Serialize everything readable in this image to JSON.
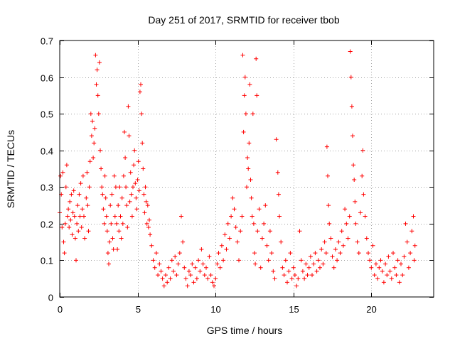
{
  "chart_data": {
    "type": "scatter",
    "title": "Day 251 of 2017, SRMTID for receiver tbob",
    "xlabel": "GPS time / hours",
    "ylabel": "SRMTID / TECUs",
    "xlim": [
      0,
      24
    ],
    "ylim": [
      0,
      0.7
    ],
    "xticks": [
      0,
      5,
      10,
      15,
      20
    ],
    "xtick_labels": [
      "0",
      "5",
      "10",
      "15",
      "20"
    ],
    "yticks": [
      0,
      0.1,
      0.2,
      0.3,
      0.4,
      0.5,
      0.6,
      0.7
    ],
    "ytick_labels": [
      "0",
      "0.1",
      "0.2",
      "0.3",
      "0.4",
      "0.5",
      "0.6",
      "0.7"
    ],
    "grid": true,
    "marker": "plus",
    "color": "#ff0000",
    "series": [
      {
        "name": "SRMTID",
        "points": [
          [
            0.0,
            0.23
          ],
          [
            0.05,
            0.33
          ],
          [
            0.1,
            0.28
          ],
          [
            0.15,
            0.19
          ],
          [
            0.2,
            0.34
          ],
          [
            0.25,
            0.15
          ],
          [
            0.3,
            0.12
          ],
          [
            0.35,
            0.2
          ],
          [
            0.4,
            0.3
          ],
          [
            0.45,
            0.36
          ],
          [
            0.5,
            0.22
          ],
          [
            0.55,
            0.24
          ],
          [
            0.6,
            0.19
          ],
          [
            0.65,
            0.26
          ],
          [
            0.7,
            0.21
          ],
          [
            0.75,
            0.28
          ],
          [
            0.8,
            0.17
          ],
          [
            0.85,
            0.23
          ],
          [
            0.9,
            0.29
          ],
          [
            0.95,
            0.22
          ],
          [
            1.0,
            0.16
          ],
          [
            1.05,
            0.1
          ],
          [
            1.1,
            0.2
          ],
          [
            1.15,
            0.25
          ],
          [
            1.2,
            0.18
          ],
          [
            1.25,
            0.28
          ],
          [
            1.3,
            0.22
          ],
          [
            1.35,
            0.31
          ],
          [
            1.4,
            0.19
          ],
          [
            1.45,
            0.24
          ],
          [
            1.5,
            0.33
          ],
          [
            1.55,
            0.22
          ],
          [
            1.6,
            0.16
          ],
          [
            1.7,
            0.27
          ],
          [
            1.75,
            0.34
          ],
          [
            1.8,
            0.25
          ],
          [
            1.85,
            0.18
          ],
          [
            1.9,
            0.3
          ],
          [
            1.95,
            0.37
          ],
          [
            2.0,
            0.5
          ],
          [
            2.05,
            0.44
          ],
          [
            2.1,
            0.48
          ],
          [
            2.15,
            0.38
          ],
          [
            2.2,
            0.42
          ],
          [
            2.25,
            0.46
          ],
          [
            2.3,
            0.66
          ],
          [
            2.35,
            0.58
          ],
          [
            2.4,
            0.62
          ],
          [
            2.45,
            0.55
          ],
          [
            2.5,
            0.5
          ],
          [
            2.55,
            0.64
          ],
          [
            2.6,
            0.4
          ],
          [
            2.65,
            0.35
          ],
          [
            2.7,
            0.3
          ],
          [
            2.75,
            0.28
          ],
          [
            2.8,
            0.24
          ],
          [
            2.85,
            0.2
          ],
          [
            2.9,
            0.33
          ],
          [
            2.95,
            0.27
          ],
          [
            3.0,
            0.22
          ],
          [
            3.05,
            0.18
          ],
          [
            3.1,
            0.12
          ],
          [
            3.15,
            0.09
          ],
          [
            3.2,
            0.15
          ],
          [
            3.25,
            0.25
          ],
          [
            3.3,
            0.2
          ],
          [
            3.35,
            0.28
          ],
          [
            3.4,
            0.16
          ],
          [
            3.45,
            0.13
          ],
          [
            3.5,
            0.33
          ],
          [
            3.55,
            0.22
          ],
          [
            3.6,
            0.3
          ],
          [
            3.65,
            0.2
          ],
          [
            3.7,
            0.13
          ],
          [
            3.75,
            0.25
          ],
          [
            3.8,
            0.18
          ],
          [
            3.85,
            0.3
          ],
          [
            3.9,
            0.22
          ],
          [
            3.95,
            0.16
          ],
          [
            4.0,
            0.27
          ],
          [
            4.05,
            0.2
          ],
          [
            4.1,
            0.33
          ],
          [
            4.15,
            0.45
          ],
          [
            4.2,
            0.38
          ],
          [
            4.25,
            0.3
          ],
          [
            4.3,
            0.25
          ],
          [
            4.35,
            0.19
          ],
          [
            4.4,
            0.52
          ],
          [
            4.45,
            0.44
          ],
          [
            4.5,
            0.26
          ],
          [
            4.55,
            0.34
          ],
          [
            4.6,
            0.28
          ],
          [
            4.65,
            0.22
          ],
          [
            4.7,
            0.3
          ],
          [
            4.75,
            0.36
          ],
          [
            4.8,
            0.4
          ],
          [
            4.85,
            0.31
          ],
          [
            4.9,
            0.27
          ],
          [
            4.95,
            0.24
          ],
          [
            5.0,
            0.32
          ],
          [
            5.05,
            0.37
          ],
          [
            5.1,
            0.29
          ],
          [
            5.15,
            0.56
          ],
          [
            5.2,
            0.58
          ],
          [
            5.25,
            0.5
          ],
          [
            5.3,
            0.42
          ],
          [
            5.35,
            0.35
          ],
          [
            5.4,
            0.28
          ],
          [
            5.45,
            0.23
          ],
          [
            5.5,
            0.3
          ],
          [
            5.55,
            0.26
          ],
          [
            5.6,
            0.2
          ],
          [
            5.65,
            0.25
          ],
          [
            5.7,
            0.19
          ],
          [
            5.75,
            0.21
          ],
          [
            5.8,
            0.17
          ],
          [
            5.9,
            0.14
          ],
          [
            6.0,
            0.1
          ],
          [
            6.1,
            0.08
          ],
          [
            6.2,
            0.12
          ],
          [
            6.3,
            0.06
          ],
          [
            6.4,
            0.09
          ],
          [
            6.5,
            0.07
          ],
          [
            6.6,
            0.05
          ],
          [
            6.7,
            0.03
          ],
          [
            6.8,
            0.06
          ],
          [
            6.9,
            0.04
          ],
          [
            7.0,
            0.08
          ],
          [
            7.1,
            0.05
          ],
          [
            7.2,
            0.1
          ],
          [
            7.3,
            0.07
          ],
          [
            7.4,
            0.11
          ],
          [
            7.5,
            0.06
          ],
          [
            7.6,
            0.09
          ],
          [
            7.7,
            0.12
          ],
          [
            7.8,
            0.22
          ],
          [
            7.9,
            0.15
          ],
          [
            8.0,
            0.08
          ],
          [
            8.1,
            0.05
          ],
          [
            8.2,
            0.03
          ],
          [
            8.3,
            0.07
          ],
          [
            8.4,
            0.06
          ],
          [
            8.5,
            0.09
          ],
          [
            8.6,
            0.04
          ],
          [
            8.7,
            0.08
          ],
          [
            8.8,
            0.05
          ],
          [
            8.9,
            0.1
          ],
          [
            9.0,
            0.07
          ],
          [
            9.1,
            0.13
          ],
          [
            9.2,
            0.09
          ],
          [
            9.3,
            0.06
          ],
          [
            9.4,
            0.08
          ],
          [
            9.5,
            0.05
          ],
          [
            9.6,
            0.11
          ],
          [
            9.7,
            0.06
          ],
          [
            9.8,
            0.04
          ],
          [
            9.9,
            0.03
          ],
          [
            10.0,
            0.05
          ],
          [
            10.1,
            0.09
          ],
          [
            10.2,
            0.12
          ],
          [
            10.3,
            0.08
          ],
          [
            10.4,
            0.14
          ],
          [
            10.5,
            0.1
          ],
          [
            10.6,
            0.17
          ],
          [
            10.7,
            0.13
          ],
          [
            10.8,
            0.2
          ],
          [
            10.9,
            0.16
          ],
          [
            11.0,
            0.22
          ],
          [
            11.1,
            0.27
          ],
          [
            11.2,
            0.24
          ],
          [
            11.3,
            0.19
          ],
          [
            11.4,
            0.15
          ],
          [
            11.5,
            0.1
          ],
          [
            11.6,
            0.18
          ],
          [
            11.7,
            0.22
          ],
          [
            11.75,
            0.66
          ],
          [
            11.8,
            0.45
          ],
          [
            11.85,
            0.55
          ],
          [
            11.9,
            0.6
          ],
          [
            11.95,
            0.5
          ],
          [
            12.0,
            0.3
          ],
          [
            12.05,
            0.38
          ],
          [
            12.1,
            0.35
          ],
          [
            12.15,
            0.42
          ],
          [
            12.2,
            0.58
          ],
          [
            12.25,
            0.32
          ],
          [
            12.3,
            0.27
          ],
          [
            12.35,
            0.22
          ],
          [
            12.4,
            0.5
          ],
          [
            12.45,
            0.2
          ],
          [
            12.5,
            0.12
          ],
          [
            12.55,
            0.09
          ],
          [
            12.6,
            0.65
          ],
          [
            12.65,
            0.55
          ],
          [
            12.7,
            0.18
          ],
          [
            12.8,
            0.24
          ],
          [
            12.9,
            0.08
          ],
          [
            13.0,
            0.16
          ],
          [
            13.1,
            0.2
          ],
          [
            13.2,
            0.25
          ],
          [
            13.3,
            0.14
          ],
          [
            13.4,
            0.1
          ],
          [
            13.5,
            0.18
          ],
          [
            13.6,
            0.12
          ],
          [
            13.7,
            0.07
          ],
          [
            13.8,
            0.05
          ],
          [
            13.9,
            0.43
          ],
          [
            14.0,
            0.34
          ],
          [
            14.05,
            0.28
          ],
          [
            14.1,
            0.22
          ],
          [
            14.2,
            0.15
          ],
          [
            14.3,
            0.08
          ],
          [
            14.4,
            0.06
          ],
          [
            14.5,
            0.1
          ],
          [
            14.6,
            0.04
          ],
          [
            14.7,
            0.07
          ],
          [
            14.8,
            0.12
          ],
          [
            14.9,
            0.05
          ],
          [
            15.0,
            0.08
          ],
          [
            15.1,
            0.06
          ],
          [
            15.2,
            0.03
          ],
          [
            15.3,
            0.05
          ],
          [
            15.4,
            0.18
          ],
          [
            15.5,
            0.1
          ],
          [
            15.6,
            0.07
          ],
          [
            15.7,
            0.05
          ],
          [
            15.8,
            0.09
          ],
          [
            15.9,
            0.06
          ],
          [
            16.0,
            0.08
          ],
          [
            16.1,
            0.11
          ],
          [
            16.2,
            0.06
          ],
          [
            16.3,
            0.09
          ],
          [
            16.4,
            0.12
          ],
          [
            16.5,
            0.07
          ],
          [
            16.6,
            0.1
          ],
          [
            16.7,
            0.08
          ],
          [
            16.8,
            0.13
          ],
          [
            16.9,
            0.09
          ],
          [
            17.0,
            0.15
          ],
          [
            17.1,
            0.12
          ],
          [
            17.15,
            0.41
          ],
          [
            17.2,
            0.33
          ],
          [
            17.25,
            0.25
          ],
          [
            17.3,
            0.2
          ],
          [
            17.4,
            0.16
          ],
          [
            17.5,
            0.11
          ],
          [
            17.6,
            0.08
          ],
          [
            17.7,
            0.13
          ],
          [
            17.8,
            0.1
          ],
          [
            17.9,
            0.15
          ],
          [
            18.0,
            0.12
          ],
          [
            18.1,
            0.18
          ],
          [
            18.2,
            0.14
          ],
          [
            18.3,
            0.24
          ],
          [
            18.4,
            0.2
          ],
          [
            18.5,
            0.16
          ],
          [
            18.6,
            0.22
          ],
          [
            18.65,
            0.67
          ],
          [
            18.7,
            0.6
          ],
          [
            18.75,
            0.52
          ],
          [
            18.8,
            0.44
          ],
          [
            18.85,
            0.36
          ],
          [
            18.9,
            0.32
          ],
          [
            18.95,
            0.26
          ],
          [
            19.0,
            0.2
          ],
          [
            19.1,
            0.15
          ],
          [
            19.2,
            0.12
          ],
          [
            19.3,
            0.23
          ],
          [
            19.4,
            0.33
          ],
          [
            19.45,
            0.4
          ],
          [
            19.5,
            0.28
          ],
          [
            19.6,
            0.22
          ],
          [
            19.7,
            0.16
          ],
          [
            19.8,
            0.12
          ],
          [
            19.9,
            0.1
          ],
          [
            20.0,
            0.08
          ],
          [
            20.1,
            0.14
          ],
          [
            20.2,
            0.06
          ],
          [
            20.3,
            0.09
          ],
          [
            20.4,
            0.05
          ],
          [
            20.5,
            0.08
          ],
          [
            20.6,
            0.1
          ],
          [
            20.7,
            0.07
          ],
          [
            20.8,
            0.04
          ],
          [
            20.9,
            0.09
          ],
          [
            21.0,
            0.06
          ],
          [
            21.1,
            0.11
          ],
          [
            21.2,
            0.07
          ],
          [
            21.3,
            0.05
          ],
          [
            21.4,
            0.12
          ],
          [
            21.5,
            0.08
          ],
          [
            21.6,
            0.06
          ],
          [
            21.7,
            0.1
          ],
          [
            21.8,
            0.04
          ],
          [
            21.9,
            0.09
          ],
          [
            22.0,
            0.06
          ],
          [
            22.1,
            0.11
          ],
          [
            22.2,
            0.2
          ],
          [
            22.3,
            0.15
          ],
          [
            22.4,
            0.08
          ],
          [
            22.5,
            0.12
          ],
          [
            22.6,
            0.18
          ],
          [
            22.7,
            0.22
          ],
          [
            22.75,
            0.1
          ],
          [
            22.8,
            0.14
          ]
        ]
      }
    ]
  }
}
